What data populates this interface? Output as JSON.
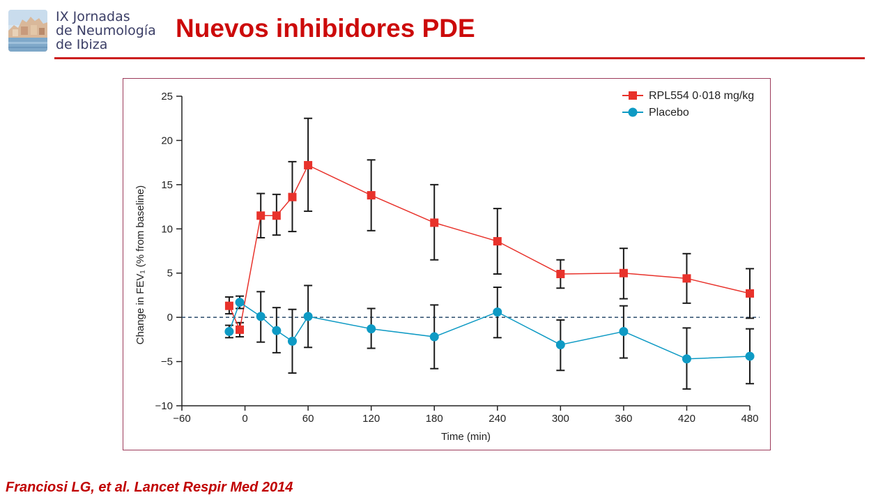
{
  "header": {
    "logo_lines": [
      "IX Jornadas",
      "de Neumología",
      "de Ibiza"
    ],
    "title": "Nuevos inhibidores PDE"
  },
  "citation": "Franciosi LG, et al. Lancet Respir Med 2014",
  "colors": {
    "title": "#cc0a0a",
    "rpl": "#e8322b",
    "placebo": "#0e9ac4",
    "error_bar": "#1a1a1a"
  },
  "chart_data": {
    "type": "line",
    "xlabel": "Time (min)",
    "ylabel": "Change in FEV₁ (% from baseline)",
    "xlim": [
      -60,
      480
    ],
    "ylim": [
      -10,
      25
    ],
    "x_ticks": [
      -60,
      0,
      60,
      120,
      180,
      240,
      300,
      360,
      420,
      480
    ],
    "x_tick_labels": [
      "−60",
      "0",
      "60",
      "120",
      "180",
      "240",
      "300",
      "360",
      "420",
      "480"
    ],
    "y_ticks": [
      -10,
      -5,
      0,
      5,
      10,
      15,
      20,
      25
    ],
    "y_tick_labels": [
      "−10",
      "−5",
      "0",
      "5",
      "10",
      "15",
      "20",
      "25"
    ],
    "reference_line": {
      "y": 0,
      "style": "dashed"
    },
    "grid": false,
    "legend": "top-right",
    "series": [
      {
        "name": "RPL554 0·018 mg/kg",
        "marker": "square",
        "x": [
          -15,
          -5,
          15,
          30,
          45,
          60,
          120,
          180,
          240,
          300,
          360,
          420,
          480
        ],
        "y": [
          1.3,
          -1.4,
          11.5,
          11.5,
          13.6,
          17.2,
          13.8,
          10.7,
          8.6,
          4.9,
          5.0,
          4.4,
          2.7
        ],
        "err_low": [
          0.4,
          -2.2,
          9.0,
          9.3,
          9.7,
          12.0,
          9.8,
          6.5,
          4.9,
          3.3,
          2.1,
          1.6,
          -0.1
        ],
        "err_high": [
          2.3,
          -0.6,
          14.0,
          13.9,
          17.6,
          22.5,
          17.8,
          15.0,
          12.3,
          6.5,
          7.8,
          7.2,
          5.5
        ]
      },
      {
        "name": "Placebo",
        "marker": "circle",
        "x": [
          -15,
          -5,
          15,
          30,
          45,
          60,
          120,
          180,
          240,
          300,
          360,
          420,
          480
        ],
        "y": [
          -1.6,
          1.7,
          0.1,
          -1.5,
          -2.7,
          0.1,
          -1.3,
          -2.2,
          0.6,
          -3.1,
          -1.6,
          -4.7,
          -4.4
        ],
        "err_low": [
          -2.3,
          1.0,
          -2.8,
          -4.0,
          -6.3,
          -3.4,
          -3.5,
          -5.8,
          -2.3,
          -6.0,
          -4.6,
          -8.1,
          -7.5
        ],
        "err_high": [
          -0.9,
          2.4,
          2.9,
          1.1,
          0.9,
          3.6,
          1.0,
          1.4,
          3.4,
          -0.3,
          1.3,
          -1.2,
          -1.3
        ]
      }
    ]
  }
}
